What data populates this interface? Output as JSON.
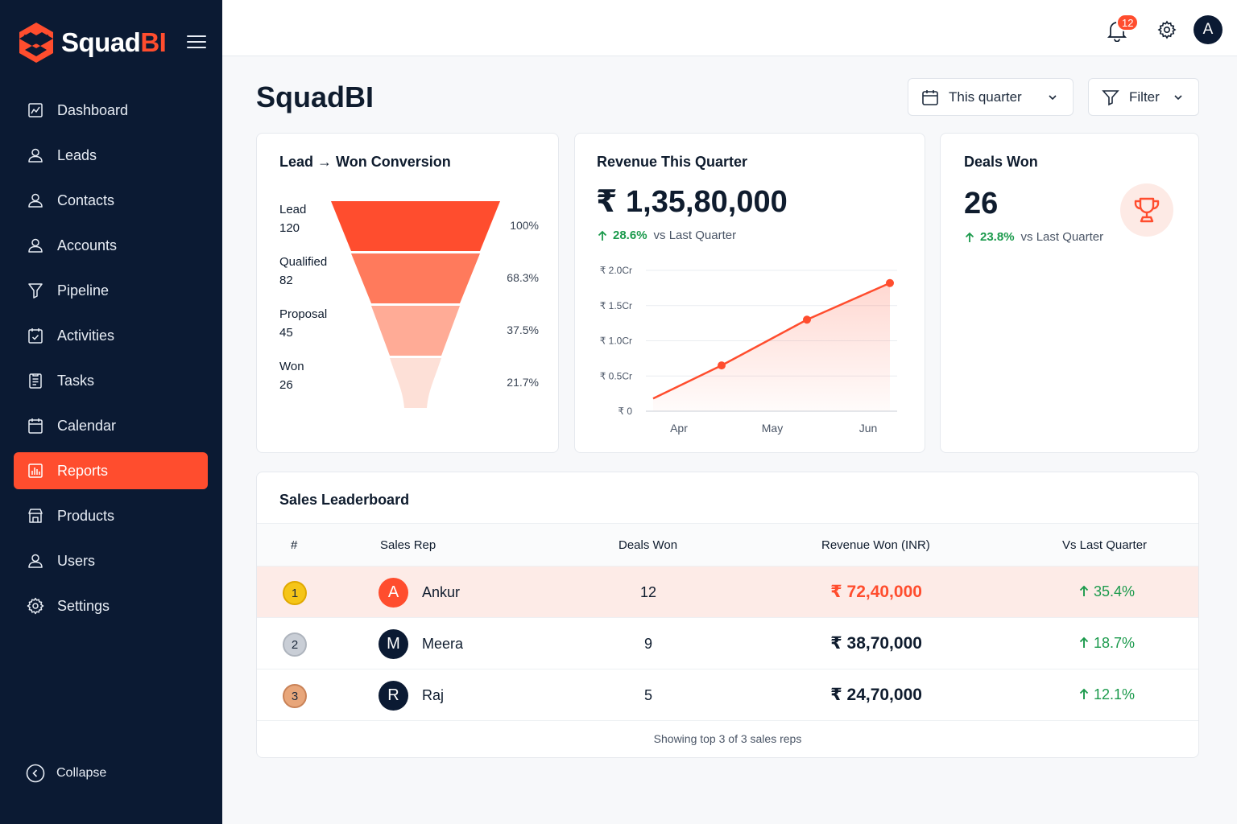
{
  "brand": {
    "name_main": "Squad",
    "name_accent": "BI"
  },
  "sidebar": {
    "items": [
      {
        "label": "Dashboard",
        "icon": "dashboard-icon",
        "active": false
      },
      {
        "label": "Leads",
        "icon": "user-icon",
        "active": false
      },
      {
        "label": "Contacts",
        "icon": "user-icon",
        "active": false
      },
      {
        "label": "Accounts",
        "icon": "user-icon",
        "active": false
      },
      {
        "label": "Pipeline",
        "icon": "funnel-icon",
        "active": false
      },
      {
        "label": "Activities",
        "icon": "calendar-check-icon",
        "active": false
      },
      {
        "label": "Tasks",
        "icon": "clipboard-icon",
        "active": false
      },
      {
        "label": "Calendar",
        "icon": "calendar-icon",
        "active": false
      },
      {
        "label": "Reports",
        "icon": "bar-chart-icon",
        "active": true
      },
      {
        "label": "Products",
        "icon": "store-icon",
        "active": false
      },
      {
        "label": "Users",
        "icon": "user-icon",
        "active": false
      },
      {
        "label": "Settings",
        "icon": "gear-icon",
        "active": false
      }
    ],
    "collapse_label": "Collapse"
  },
  "topbar": {
    "notification_count": "12",
    "avatar_initial": "A"
  },
  "page": {
    "title": "SquadBI"
  },
  "controls": {
    "period_label": "This quarter",
    "filter_label": "Filter"
  },
  "funnel": {
    "title_left": "Lead",
    "title_arrow": "→",
    "title_right": "Won Conversion",
    "stages": [
      {
        "name": "Lead",
        "count": "120",
        "pct": "100%",
        "color": "#ff4d2e"
      },
      {
        "name": "Qualified",
        "count": "82",
        "pct": "68.3%",
        "color": "#ff7a5c"
      },
      {
        "name": "Proposal",
        "count": "45",
        "pct": "37.5%",
        "color": "#ffab96"
      },
      {
        "name": "Won",
        "count": "26",
        "pct": "21.7%",
        "color": "#fde0d7"
      }
    ]
  },
  "revenue": {
    "title": "Revenue This Quarter",
    "value": "₹ 1,35,80,000",
    "trend_value": "28.6%",
    "trend_label": "vs Last Quarter"
  },
  "chart_data": {
    "type": "area",
    "x": [
      "Apr",
      "May",
      "Jun"
    ],
    "y_tick_labels": [
      "₹ 0",
      "₹ 0.5Cr",
      "₹ 1.0Cr",
      "₹ 1.5Cr",
      "₹ 2.0Cr"
    ],
    "y_ticks": [
      0,
      0.5,
      1.0,
      1.5,
      2.0
    ],
    "ylim": [
      0,
      2.0
    ],
    "grid": true,
    "line_start": 0.18,
    "values": [
      0.65,
      1.3,
      1.82
    ],
    "color": "#ff4d2e"
  },
  "deals": {
    "title": "Deals Won",
    "value": "26",
    "trend_value": "23.8%",
    "trend_label": "vs Last Quarter",
    "icon": "trophy-icon"
  },
  "leaderboard": {
    "title": "Sales Leaderboard",
    "columns": [
      "#",
      "Sales Rep",
      "Deals Won",
      "Revenue Won (INR)",
      "Vs Last Quarter"
    ],
    "rows": [
      {
        "rank": "1",
        "initial": "A",
        "name": "Ankur",
        "deals": "12",
        "revenue": "₹ 72,40,000",
        "change": "35.4%",
        "medal_color": "#f5c518",
        "avatar_color": "#ff4d2e"
      },
      {
        "rank": "2",
        "initial": "M",
        "name": "Meera",
        "deals": "9",
        "revenue": "₹ 38,70,000",
        "change": "18.7%",
        "medal_color": "#c9ced6",
        "avatar_color": "#0b1a33"
      },
      {
        "rank": "3",
        "initial": "R",
        "name": "Raj",
        "deals": "5",
        "revenue": "₹ 24,70,000",
        "change": "12.1%",
        "medal_color": "#e8a67a",
        "avatar_color": "#0b1a33"
      }
    ],
    "footer": "Showing top 3 of 3 sales reps"
  }
}
